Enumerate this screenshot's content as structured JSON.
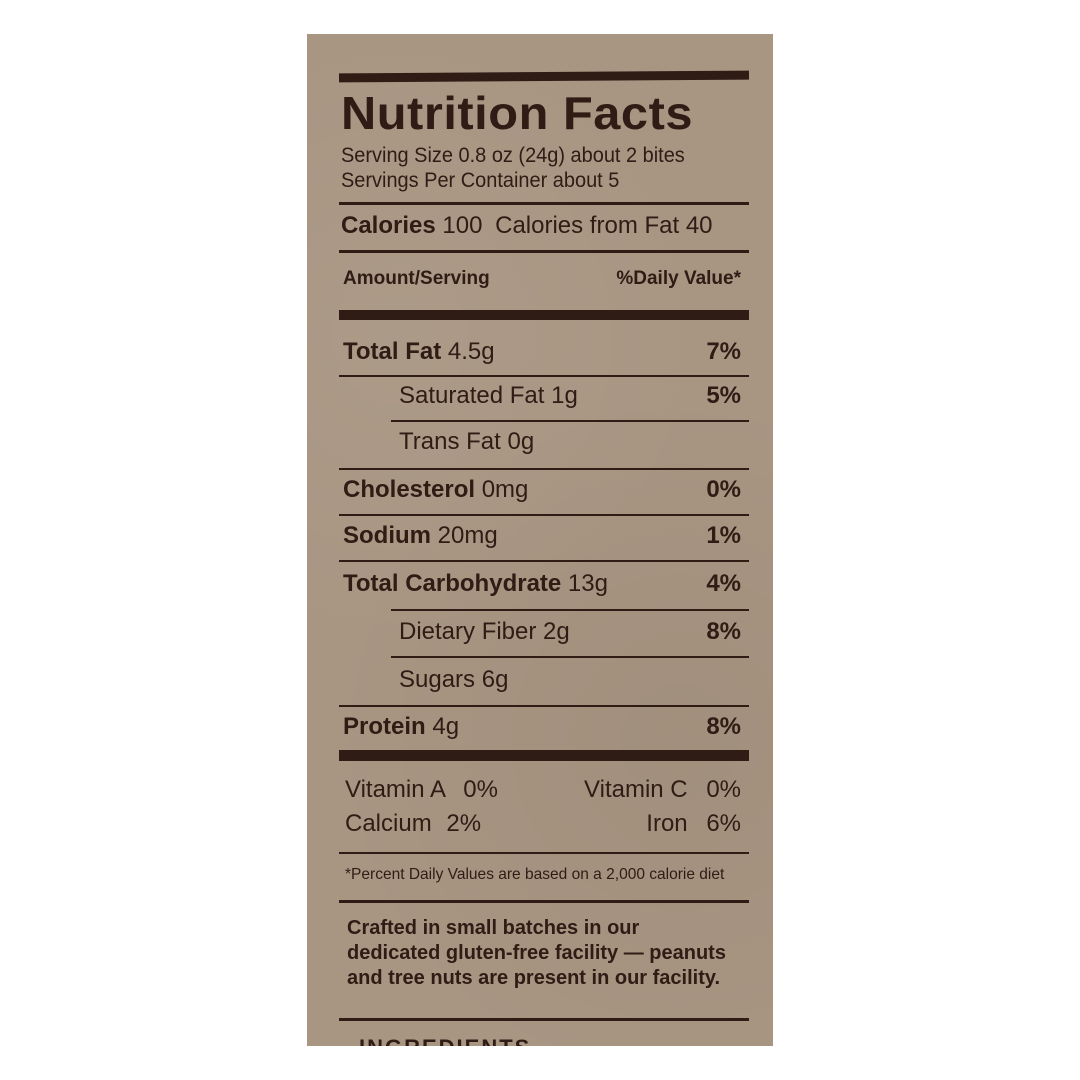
{
  "label": {
    "title": "Nutrition Facts",
    "serving_size": "Serving Size 0.8 oz (24g) about 2 bites",
    "servings_per_container": "Servings Per Container about 5",
    "calories_label": "Calories",
    "calories_value": "100",
    "calories_from_fat": "Calories from Fat 40",
    "amount_header": "Amount/Serving",
    "dv_header": "%Daily Value*",
    "nutrients": [
      {
        "name": "Total Fat",
        "amount": "4.5g",
        "dv": "7%"
      },
      {
        "name": "Saturated Fat",
        "amount": "1g",
        "dv": "5%"
      },
      {
        "name": "Trans Fat",
        "amount": "0g",
        "dv": ""
      },
      {
        "name": "Cholesterol",
        "amount": "0mg",
        "dv": "0%"
      },
      {
        "name": "Sodium",
        "amount": "20mg",
        "dv": "1%"
      },
      {
        "name": "Total Carbohydrate",
        "amount": "13g",
        "dv": "4%"
      },
      {
        "name": "Dietary Fiber",
        "amount": "2g",
        "dv": "8%"
      },
      {
        "name": "Sugars",
        "amount": "6g",
        "dv": ""
      },
      {
        "name": "Protein",
        "amount": "4g",
        "dv": "8%"
      }
    ],
    "vitamins": {
      "vitamin_a": "Vitamin A",
      "vitamin_a_value": "0%",
      "vitamin_c": "Vitamin C",
      "vitamin_c_value": "0%",
      "calcium": "Calcium",
      "calcium_value": "2%",
      "iron": "Iron",
      "iron_value": "6%"
    },
    "footnote": "*Percent Daily Values are based on a 2,000 calorie diet",
    "crafted_lines": [
      "Crafted in small batches in our",
      "dedicated gluten-free facility — peanuts",
      "and tree nuts are present in our facility."
    ],
    "ingredients_heading": "INGREDIENTS"
  },
  "colors": {
    "label_background": "#a89582",
    "ink": "#2e1c15"
  }
}
